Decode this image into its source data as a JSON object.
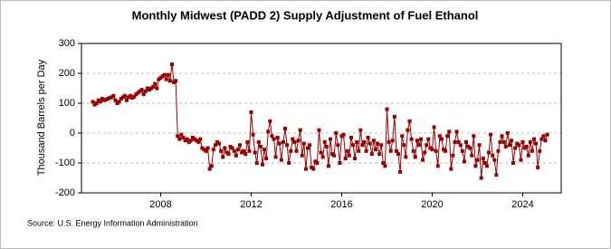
{
  "chart_data": {
    "type": "line",
    "title": "Monthly Midwest (PADD 2) Supply Adjustment of Fuel Ethanol",
    "y_label": "Thousand Barrels per Day",
    "source": "Source: U.S. Energy Information Administration",
    "color": "#990000",
    "grid": true,
    "xlim": [
      2004.5,
      2025.7
    ],
    "xticks": [
      2008,
      2012,
      2016,
      2020,
      2024
    ],
    "ylim": [
      -200,
      300
    ],
    "yticks": [
      -200,
      -100,
      0,
      100,
      200,
      300
    ],
    "x": [
      2005,
      2005.083,
      2005.167,
      2005.25,
      2005.333,
      2005.417,
      2005.5,
      2005.583,
      2005.667,
      2005.75,
      2005.833,
      2005.917,
      2006,
      2006.083,
      2006.167,
      2006.25,
      2006.333,
      2006.417,
      2006.5,
      2006.583,
      2006.667,
      2006.75,
      2006.833,
      2006.917,
      2007,
      2007.083,
      2007.167,
      2007.25,
      2007.333,
      2007.417,
      2007.5,
      2007.583,
      2007.667,
      2007.75,
      2007.833,
      2007.917,
      2008,
      2008.083,
      2008.167,
      2008.25,
      2008.333,
      2008.417,
      2008.5,
      2008.583,
      2008.667,
      2008.75,
      2008.833,
      2008.917,
      2009,
      2009.083,
      2009.167,
      2009.25,
      2009.333,
      2009.417,
      2009.5,
      2009.583,
      2009.667,
      2009.75,
      2009.833,
      2009.917,
      2010,
      2010.083,
      2010.167,
      2010.25,
      2010.333,
      2010.417,
      2010.5,
      2010.583,
      2010.667,
      2010.75,
      2010.833,
      2010.917,
      2011,
      2011.083,
      2011.167,
      2011.25,
      2011.333,
      2011.417,
      2011.5,
      2011.583,
      2011.667,
      2011.75,
      2011.833,
      2011.917,
      2012,
      2012.083,
      2012.167,
      2012.25,
      2012.333,
      2012.417,
      2012.5,
      2012.583,
      2012.667,
      2012.75,
      2012.833,
      2012.917,
      2013,
      2013.083,
      2013.167,
      2013.25,
      2013.333,
      2013.417,
      2013.5,
      2013.583,
      2013.667,
      2013.75,
      2013.833,
      2013.917,
      2014,
      2014.083,
      2014.167,
      2014.25,
      2014.333,
      2014.417,
      2014.5,
      2014.583,
      2014.667,
      2014.75,
      2014.833,
      2014.917,
      2015,
      2015.083,
      2015.167,
      2015.25,
      2015.333,
      2015.417,
      2015.5,
      2015.583,
      2015.667,
      2015.75,
      2015.833,
      2015.917,
      2016,
      2016.083,
      2016.167,
      2016.25,
      2016.333,
      2016.417,
      2016.5,
      2016.583,
      2016.667,
      2016.75,
      2016.833,
      2016.917,
      2017,
      2017.083,
      2017.167,
      2017.25,
      2017.333,
      2017.417,
      2017.5,
      2017.583,
      2017.667,
      2017.75,
      2017.833,
      2017.917,
      2018,
      2018.083,
      2018.167,
      2018.25,
      2018.333,
      2018.417,
      2018.5,
      2018.583,
      2018.667,
      2018.75,
      2018.833,
      2018.917,
      2019,
      2019.083,
      2019.167,
      2019.25,
      2019.333,
      2019.417,
      2019.5,
      2019.583,
      2019.667,
      2019.75,
      2019.833,
      2019.917,
      2020,
      2020.083,
      2020.167,
      2020.25,
      2020.333,
      2020.417,
      2020.5,
      2020.583,
      2020.667,
      2020.75,
      2020.833,
      2020.917,
      2021,
      2021.083,
      2021.167,
      2021.25,
      2021.333,
      2021.417,
      2021.5,
      2021.583,
      2021.667,
      2021.75,
      2021.833,
      2021.917,
      2022,
      2022.083,
      2022.167,
      2022.25,
      2022.333,
      2022.417,
      2022.5,
      2022.583,
      2022.667,
      2022.75,
      2022.833,
      2022.917,
      2023,
      2023.083,
      2023.167,
      2023.25,
      2023.333,
      2023.417,
      2023.5,
      2023.583,
      2023.667,
      2023.75,
      2023.833,
      2023.917,
      2024,
      2024.083,
      2024.167,
      2024.25,
      2024.333,
      2024.417,
      2024.5,
      2024.583,
      2024.667,
      2024.75,
      2024.833,
      2024.917,
      2025,
      2025.083
    ],
    "values": [
      105,
      95,
      100,
      110,
      105,
      115,
      110,
      112,
      115,
      118,
      120,
      125,
      110,
      100,
      105,
      115,
      120,
      125,
      110,
      120,
      125,
      118,
      122,
      130,
      135,
      140,
      145,
      130,
      140,
      150,
      145,
      150,
      155,
      165,
      150,
      180,
      185,
      190,
      195,
      180,
      195,
      175,
      230,
      170,
      175,
      -10,
      -20,
      -5,
      -15,
      -25,
      -20,
      -30,
      -25,
      -15,
      -20,
      -25,
      -30,
      -20,
      -50,
      -55,
      -60,
      -50,
      -120,
      -110,
      -55,
      -40,
      -30,
      -35,
      -60,
      -80,
      -50,
      -65,
      -70,
      -45,
      -50,
      -60,
      -75,
      -55,
      -40,
      -65,
      -60,
      -70,
      -30,
      -60,
      70,
      -5,
      -65,
      -100,
      -30,
      -45,
      -105,
      -55,
      -85,
      5,
      40,
      -10,
      -20,
      -80,
      -15,
      -35,
      -90,
      -30,
      15,
      -40,
      -100,
      -60,
      -20,
      -30,
      -60,
      -25,
      10,
      -75,
      -35,
      -120,
      -50,
      -40,
      -115,
      -120,
      -95,
      -100,
      10,
      -65,
      -80,
      -30,
      -45,
      -110,
      -20,
      -70,
      -75,
      0,
      -40,
      -100,
      -10,
      -5,
      -85,
      -60,
      -75,
      -15,
      -40,
      -85,
      -30,
      -60,
      10,
      -40,
      -30,
      -60,
      -15,
      -35,
      -70,
      -25,
      -55,
      -35,
      -70,
      -40,
      -100,
      -110,
      80,
      -30,
      -60,
      -25,
      55,
      -60,
      -70,
      -130,
      -10,
      -40,
      -80,
      10,
      40,
      -20,
      -60,
      -80,
      -25,
      -40,
      -20,
      -90,
      -65,
      -40,
      -20,
      -50,
      -55,
      20,
      -60,
      -110,
      -10,
      -20,
      -55,
      -60,
      -10,
      5,
      -120,
      -75,
      -30,
      5,
      -30,
      -40,
      -60,
      -95,
      -30,
      -45,
      -50,
      -75,
      -10,
      -110,
      -90,
      -40,
      -150,
      -85,
      -100,
      -110,
      -65,
      -5,
      -75,
      -90,
      -140,
      -60,
      -30,
      -10,
      -30,
      -45,
      0,
      -40,
      -25,
      -100,
      -50,
      -35,
      -40,
      -90,
      -30,
      -50,
      -45,
      -75,
      -30,
      -60,
      -20,
      -35,
      -115,
      -60,
      -20,
      -10,
      -25,
      -5
    ]
  }
}
